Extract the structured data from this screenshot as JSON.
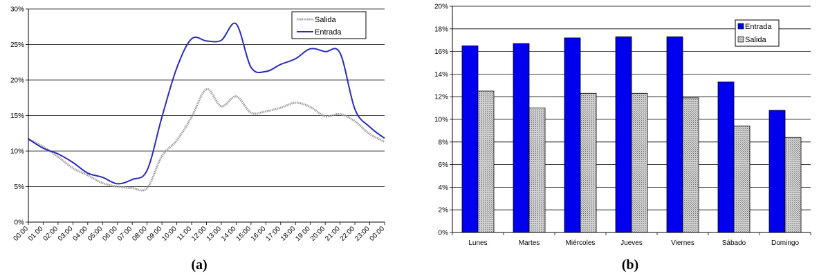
{
  "chart_data": [
    {
      "type": "line",
      "caption": "(a)",
      "x": [
        "00:00",
        "01:00",
        "02:00",
        "03:00",
        "04:00",
        "05:00",
        "06:00",
        "07:00",
        "08:00",
        "09:00",
        "10:00",
        "11:00",
        "12:00",
        "13:00",
        "14:00",
        "15:00",
        "16:00",
        "17:00",
        "18:00",
        "19:00",
        "20:00",
        "21:00",
        "22:00",
        "23:00",
        "00:00"
      ],
      "ylim": [
        0,
        30
      ],
      "yticks": [
        "0%",
        "5%",
        "10%",
        "15%",
        "20%",
        "25%",
        "30%"
      ],
      "grid": true,
      "legend": "top-right",
      "series": [
        {
          "name": "Salida",
          "color": "#a0a0a0",
          "style": "dotted",
          "values": [
            11.7,
            10.6,
            9.2,
            7.6,
            6.6,
            5.5,
            5.0,
            4.8,
            4.8,
            9.3,
            11.5,
            14.8,
            18.7,
            16.3,
            17.7,
            15.4,
            15.6,
            16.1,
            16.8,
            16.2,
            14.9,
            15.2,
            14.2,
            12.4,
            11.3
          ]
        },
        {
          "name": "Entrada",
          "color": "#2a2ac0",
          "style": "solid",
          "values": [
            11.7,
            10.4,
            9.6,
            8.4,
            6.9,
            6.3,
            5.4,
            6.0,
            7.3,
            14.8,
            21.7,
            25.8,
            25.5,
            25.6,
            27.9,
            21.8,
            21.2,
            22.2,
            23.0,
            24.4,
            24.0,
            23.8,
            15.9,
            13.4,
            11.8
          ]
        }
      ]
    },
    {
      "type": "bar",
      "caption": "(b)",
      "categories": [
        "Lunes",
        "Martes",
        "Miércoles",
        "Jueves",
        "Viernes",
        "Sábado",
        "Domingo"
      ],
      "ylim": [
        0,
        20
      ],
      "yticks": [
        "0%",
        "2%",
        "4%",
        "6%",
        "8%",
        "10%",
        "12%",
        "14%",
        "16%",
        "18%",
        "20%"
      ],
      "grid": true,
      "legend": "top-right",
      "series": [
        {
          "name": "Entrada",
          "color": "#0000ee",
          "values": [
            16.5,
            16.7,
            17.2,
            17.3,
            17.3,
            13.3,
            10.8
          ]
        },
        {
          "name": "Salida",
          "color": "#b0b0b0",
          "values": [
            12.5,
            11.0,
            12.3,
            12.3,
            11.9,
            9.4,
            8.4
          ]
        }
      ]
    }
  ]
}
